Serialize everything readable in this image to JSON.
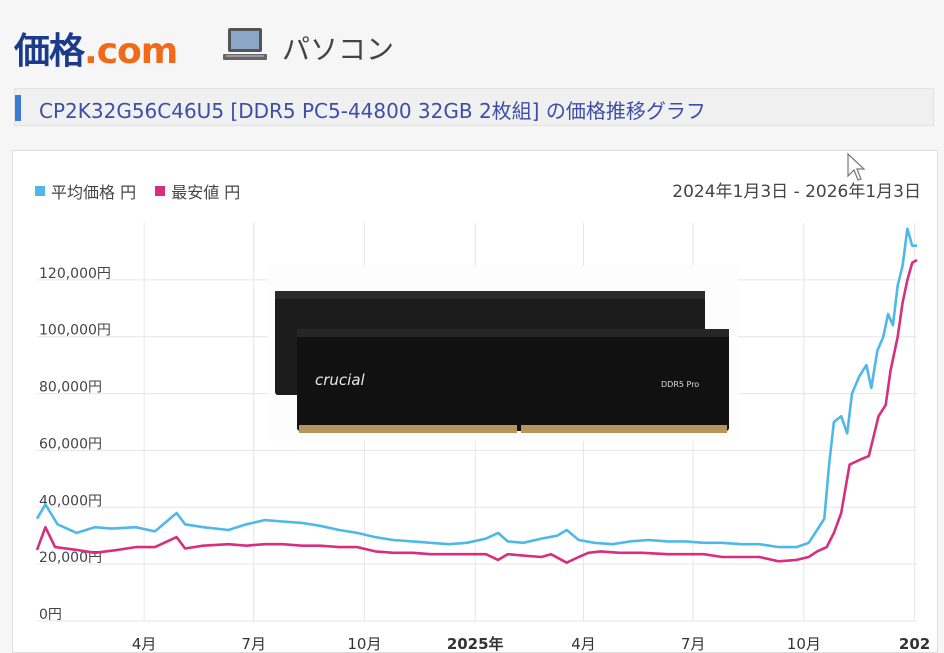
{
  "header": {
    "logo_main": "価格",
    "logo_domain": ".com",
    "category": "パソコン",
    "pc_icon": "laptop-icon"
  },
  "page_title": "CP2K32G56C46U5 [DDR5 PC5-44800 32GB 2枚組] の価格推移グラフ",
  "product_image": {
    "brand": "crucial",
    "label": "DDR5 Pro"
  },
  "chart_data": {
    "type": "line",
    "legend": [
      {
        "name": "平均価格 円",
        "color": "#4fb8e8"
      },
      {
        "name": "最安値 円",
        "color": "#d62f7f"
      }
    ],
    "date_range": "2024年1月3日 - 2026年1月3日",
    "xlim": [
      "2024-01-03",
      "2026-01-03"
    ],
    "ylim": [
      0,
      140000
    ],
    "y_ticks": [
      {
        "value": 0,
        "label": "0円"
      },
      {
        "value": 20000,
        "label": "20,000円"
      },
      {
        "value": 40000,
        "label": "40,000円"
      },
      {
        "value": 60000,
        "label": "60,000円"
      },
      {
        "value": 80000,
        "label": "80,000円"
      },
      {
        "value": 100000,
        "label": "100,000円"
      },
      {
        "value": 120000,
        "label": "120,000円"
      }
    ],
    "x_ticks": [
      {
        "date": "2024-04-01",
        "label": "4月",
        "bold": false
      },
      {
        "date": "2024-07-01",
        "label": "7月",
        "bold": false
      },
      {
        "date": "2024-10-01",
        "label": "10月",
        "bold": false
      },
      {
        "date": "2025-01-01",
        "label": "2025年",
        "bold": true
      },
      {
        "date": "2025-04-01",
        "label": "4月",
        "bold": false
      },
      {
        "date": "2025-07-01",
        "label": "7月",
        "bold": false
      },
      {
        "date": "2025-10-01",
        "label": "10月",
        "bold": false
      },
      {
        "date": "2026-01-01",
        "label": "202",
        "bold": true
      }
    ],
    "series": [
      {
        "name": "平均価格 円",
        "color": "#4fb8e8",
        "points": [
          [
            "2024-01-03",
            36000
          ],
          [
            "2024-01-10",
            41000
          ],
          [
            "2024-01-20",
            34000
          ],
          [
            "2024-02-05",
            31000
          ],
          [
            "2024-02-20",
            33000
          ],
          [
            "2024-03-05",
            32500
          ],
          [
            "2024-03-25",
            33000
          ],
          [
            "2024-04-10",
            31500
          ],
          [
            "2024-04-28",
            38000
          ],
          [
            "2024-05-05",
            34000
          ],
          [
            "2024-05-20",
            33000
          ],
          [
            "2024-06-10",
            32000
          ],
          [
            "2024-06-25",
            34000
          ],
          [
            "2024-07-10",
            35500
          ],
          [
            "2024-07-25",
            35000
          ],
          [
            "2024-08-10",
            34500
          ],
          [
            "2024-08-25",
            33500
          ],
          [
            "2024-09-10",
            32000
          ],
          [
            "2024-09-25",
            31000
          ],
          [
            "2024-10-10",
            29500
          ],
          [
            "2024-10-25",
            28500
          ],
          [
            "2024-11-10",
            28000
          ],
          [
            "2024-11-25",
            27500
          ],
          [
            "2024-12-10",
            27000
          ],
          [
            "2024-12-25",
            27500
          ],
          [
            "2025-01-10",
            29000
          ],
          [
            "2025-01-20",
            31000
          ],
          [
            "2025-01-28",
            28000
          ],
          [
            "2025-02-10",
            27500
          ],
          [
            "2025-02-25",
            29000
          ],
          [
            "2025-03-10",
            30000
          ],
          [
            "2025-03-18",
            32000
          ],
          [
            "2025-03-28",
            28500
          ],
          [
            "2025-04-10",
            27500
          ],
          [
            "2025-04-25",
            27000
          ],
          [
            "2025-05-10",
            28000
          ],
          [
            "2025-05-25",
            28500
          ],
          [
            "2025-06-10",
            28000
          ],
          [
            "2025-06-25",
            28000
          ],
          [
            "2025-07-10",
            27500
          ],
          [
            "2025-07-25",
            27500
          ],
          [
            "2025-08-10",
            27000
          ],
          [
            "2025-08-25",
            27000
          ],
          [
            "2025-09-10",
            26000
          ],
          [
            "2025-09-25",
            26000
          ],
          [
            "2025-10-05",
            27500
          ],
          [
            "2025-10-12",
            32000
          ],
          [
            "2025-10-18",
            36000
          ],
          [
            "2025-10-22",
            55000
          ],
          [
            "2025-10-26",
            70000
          ],
          [
            "2025-11-01",
            72000
          ],
          [
            "2025-11-06",
            66000
          ],
          [
            "2025-11-10",
            80000
          ],
          [
            "2025-11-16",
            86000
          ],
          [
            "2025-11-22",
            90000
          ],
          [
            "2025-11-26",
            82000
          ],
          [
            "2025-12-01",
            95000
          ],
          [
            "2025-12-06",
            100000
          ],
          [
            "2025-12-10",
            108000
          ],
          [
            "2025-12-14",
            104000
          ],
          [
            "2025-12-18",
            118000
          ],
          [
            "2025-12-22",
            125000
          ],
          [
            "2025-12-26",
            138000
          ],
          [
            "2025-12-30",
            132000
          ],
          [
            "2026-01-03",
            132000
          ]
        ]
      },
      {
        "name": "最安値 円",
        "color": "#d62f7f",
        "points": [
          [
            "2024-01-03",
            25000
          ],
          [
            "2024-01-10",
            33000
          ],
          [
            "2024-01-18",
            26000
          ],
          [
            "2024-02-05",
            25000
          ],
          [
            "2024-02-20",
            24000
          ],
          [
            "2024-03-10",
            25000
          ],
          [
            "2024-03-25",
            26000
          ],
          [
            "2024-04-10",
            26000
          ],
          [
            "2024-04-28",
            29500
          ],
          [
            "2024-05-05",
            25500
          ],
          [
            "2024-05-20",
            26500
          ],
          [
            "2024-06-10",
            27000
          ],
          [
            "2024-06-25",
            26500
          ],
          [
            "2024-07-10",
            27000
          ],
          [
            "2024-07-25",
            27000
          ],
          [
            "2024-08-10",
            26500
          ],
          [
            "2024-08-25",
            26500
          ],
          [
            "2024-09-10",
            26000
          ],
          [
            "2024-09-25",
            26000
          ],
          [
            "2024-10-10",
            24500
          ],
          [
            "2024-10-25",
            24000
          ],
          [
            "2024-11-10",
            24000
          ],
          [
            "2024-11-25",
            23500
          ],
          [
            "2024-12-10",
            23500
          ],
          [
            "2024-12-25",
            23500
          ],
          [
            "2025-01-10",
            23500
          ],
          [
            "2025-01-20",
            21500
          ],
          [
            "2025-01-28",
            23500
          ],
          [
            "2025-02-10",
            23000
          ],
          [
            "2025-02-25",
            22500
          ],
          [
            "2025-03-05",
            23500
          ],
          [
            "2025-03-18",
            20500
          ],
          [
            "2025-03-28",
            22500
          ],
          [
            "2025-04-05",
            24000
          ],
          [
            "2025-04-15",
            24500
          ],
          [
            "2025-05-01",
            24000
          ],
          [
            "2025-05-20",
            24000
          ],
          [
            "2025-06-10",
            23500
          ],
          [
            "2025-06-25",
            23500
          ],
          [
            "2025-07-10",
            23500
          ],
          [
            "2025-07-25",
            22500
          ],
          [
            "2025-08-10",
            22500
          ],
          [
            "2025-08-25",
            22500
          ],
          [
            "2025-09-10",
            21000
          ],
          [
            "2025-09-25",
            21500
          ],
          [
            "2025-10-05",
            22500
          ],
          [
            "2025-10-12",
            24500
          ],
          [
            "2025-10-20",
            26000
          ],
          [
            "2025-10-26",
            31000
          ],
          [
            "2025-11-01",
            38000
          ],
          [
            "2025-11-08",
            55000
          ],
          [
            "2025-11-18",
            57000
          ],
          [
            "2025-11-24",
            58000
          ],
          [
            "2025-11-28",
            65000
          ],
          [
            "2025-12-02",
            72000
          ],
          [
            "2025-12-08",
            76000
          ],
          [
            "2025-12-12",
            88000
          ],
          [
            "2025-12-18",
            100000
          ],
          [
            "2025-12-22",
            112000
          ],
          [
            "2025-12-26",
            120000
          ],
          [
            "2025-12-30",
            126000
          ],
          [
            "2026-01-03",
            127000
          ]
        ]
      }
    ]
  }
}
